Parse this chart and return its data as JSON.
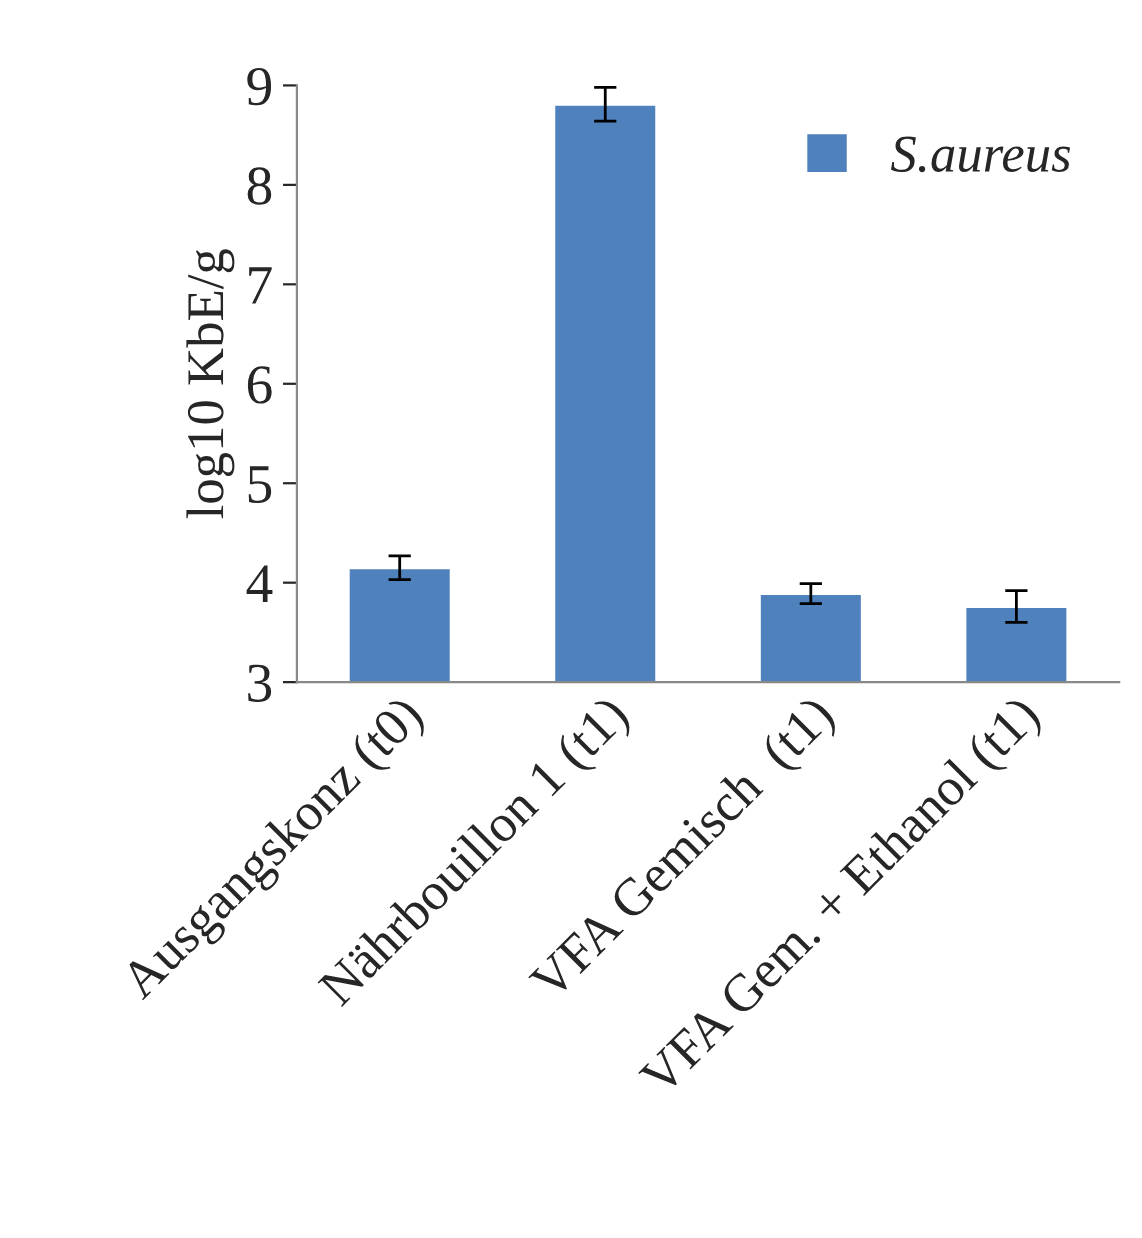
{
  "chart_data": {
    "type": "bar",
    "ylabel": "log10 KbE/g",
    "categories": [
      "Ausgangskonz (t0)",
      "Nährbouillon 1 (t1)",
      "VFA Gemisch  (t1)",
      "VFA Gem. + Ethanol (t1)"
    ],
    "series": [
      {
        "name": "S.aureus",
        "color": "#4f81bd",
        "values": [
          4.15,
          8.81,
          3.89,
          3.76
        ],
        "errors": [
          0.12,
          0.17,
          0.1,
          0.16
        ]
      }
    ],
    "ylim": [
      3,
      9
    ],
    "yticks": [
      3,
      4,
      5,
      6,
      7,
      8,
      9
    ],
    "grid": false,
    "legend": "top right"
  }
}
